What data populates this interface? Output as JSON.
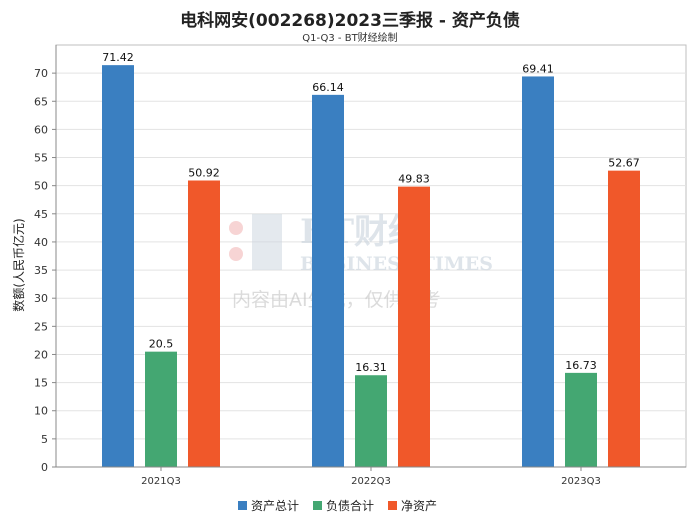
{
  "chart_data": {
    "type": "bar",
    "title": "电科网安(002268)2023三季报 - 资产负债",
    "subtitle": "Q1-Q3 - BT财经绘制",
    "ylabel": "数额(人民币亿元)",
    "xlabel": "",
    "ylim": [
      0,
      75
    ],
    "yticks": [
      0,
      5,
      10,
      15,
      20,
      25,
      30,
      35,
      40,
      45,
      50,
      55,
      60,
      65,
      70
    ],
    "categories": [
      "2021Q3",
      "2022Q3",
      "2023Q3"
    ],
    "series": [
      {
        "name": "资产总计",
        "color": "#3a7fc1",
        "values": [
          71.42,
          66.14,
          69.41
        ],
        "labels": [
          "71.42",
          "66.14",
          "69.41"
        ]
      },
      {
        "name": "负债合计",
        "color": "#44a772",
        "values": [
          20.5,
          16.31,
          16.73
        ],
        "labels": [
          "20.5",
          "16.31",
          "16.73"
        ]
      },
      {
        "name": "净资产",
        "color": "#f0582a",
        "values": [
          50.92,
          49.83,
          52.67
        ],
        "labels": [
          "50.92",
          "49.83",
          "52.67"
        ]
      }
    ],
    "grid": true,
    "legend_position": "bottom"
  },
  "watermark": {
    "brand": "BT财经",
    "brand_en": "BUSINESS TIMES",
    "notice": "内容由AI生成，仅供参考"
  }
}
